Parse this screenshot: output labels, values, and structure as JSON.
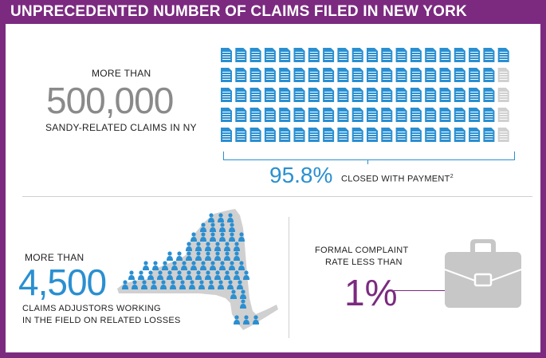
{
  "header": {
    "title": "UNPRECEDENTED NUMBER OF CLAIMS FILED IN NEW YORK"
  },
  "claims": {
    "prefix": "MORE THAN",
    "number": "500,000",
    "suffix": "SANDY-RELATED CLAIMS IN NY",
    "closed_pct": "95.8%",
    "closed_label": "CLOSED WITH PAYMENT",
    "closed_footnote": "2",
    "doc_grid": {
      "rows": 5,
      "cols": 20,
      "filled_share": 0.958
    }
  },
  "adjustors": {
    "prefix": "MORE THAN",
    "number": "4,500",
    "suffix_line1": "CLAIMS ADJUSTORS WORKING",
    "suffix_line2": "IN THE FIELD ON RELATED LOSSES"
  },
  "complaints": {
    "label_line1": "FORMAL COMPLAINT",
    "label_line2": "RATE LESS THAN",
    "rate": "1%"
  },
  "colors": {
    "purple": "#7b2a80",
    "blue": "#2a8fd1",
    "gray": "#8a8a8a",
    "light_gray": "#d0d0d0"
  },
  "icons": [
    "document-icon",
    "new-york-map-icon",
    "person-icon",
    "briefcase-icon"
  ]
}
